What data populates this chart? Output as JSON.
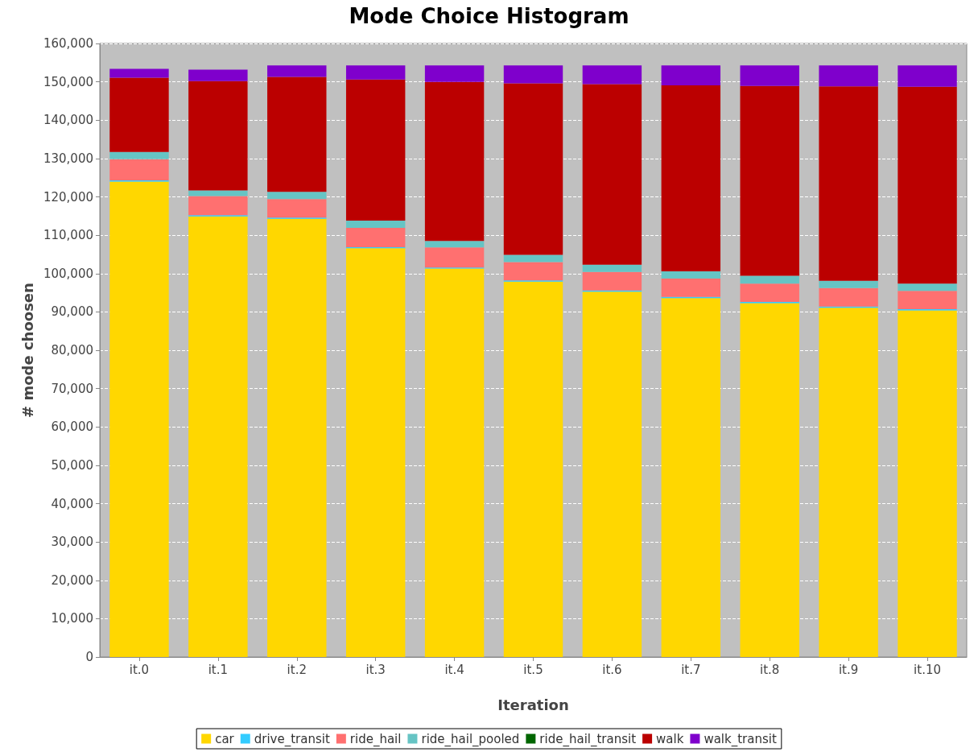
{
  "chart_data": {
    "type": "bar",
    "title": "Mode Choice Histogram",
    "xlabel": "Iteration",
    "ylabel": "# mode choosen",
    "categories": [
      "it.0",
      "it.1",
      "it.2",
      "it.3",
      "it.4",
      "it.5",
      "it.6",
      "it.7",
      "it.8",
      "it.9",
      "it.10"
    ],
    "stacked": true,
    "series": [
      {
        "name": "car",
        "color": "#ffd700",
        "values": [
          124000,
          114900,
          114300,
          106600,
          101300,
          97900,
          95300,
          93600,
          92300,
          91100,
          90400
        ]
      },
      {
        "name": "drive_transit",
        "color": "#33ccff",
        "values": [
          300,
          300,
          300,
          300,
          300,
          300,
          300,
          300,
          300,
          300,
          300
        ]
      },
      {
        "name": "ride_hail",
        "color": "#ff7070",
        "values": [
          5500,
          5000,
          4800,
          5000,
          5200,
          4800,
          4800,
          4800,
          4800,
          4800,
          4800
        ]
      },
      {
        "name": "ride_hail_pooled",
        "color": "#66c4c4",
        "values": [
          1900,
          1500,
          1900,
          1900,
          1700,
          1900,
          1900,
          1900,
          2000,
          1900,
          1900
        ]
      },
      {
        "name": "ride_hail_transit",
        "color": "#006600",
        "values": [
          0,
          0,
          0,
          0,
          0,
          0,
          0,
          0,
          0,
          0,
          0
        ]
      },
      {
        "name": "walk",
        "color": "#bb0000",
        "values": [
          19400,
          28500,
          30000,
          36800,
          41500,
          44700,
          47100,
          48500,
          49500,
          50700,
          51300
        ]
      },
      {
        "name": "walk_transit",
        "color": "#7f00cc",
        "values": [
          2300,
          3000,
          3000,
          3700,
          4300,
          4700,
          4900,
          5200,
          5400,
          5500,
          5600
        ]
      }
    ],
    "ylim": [
      0,
      160000
    ],
    "yticks": [
      0,
      {
        "value": 10000,
        "label": "10,000"
      },
      {
        "value": 20000,
        "label": "20,000"
      },
      {
        "value": 30000,
        "label": "30,000"
      },
      {
        "value": 40000,
        "label": "40,000"
      },
      {
        "value": 50000,
        "label": "50,000"
      },
      {
        "value": 60000,
        "label": "60,000"
      },
      {
        "value": 70000,
        "label": "70,000"
      },
      {
        "value": 80000,
        "label": "80,000"
      },
      {
        "value": 90000,
        "label": "90,000"
      },
      {
        "value": 100000,
        "label": "100,000"
      },
      {
        "value": 110000,
        "label": "110,000"
      },
      {
        "value": 120000,
        "label": "120,000"
      },
      {
        "value": 130000,
        "label": "130,000"
      },
      {
        "value": 140000,
        "label": "140,000"
      },
      {
        "value": 150000,
        "label": "150,000"
      },
      {
        "value": 160000,
        "label": "160,000"
      }
    ],
    "grid": "y",
    "legend": "bottom"
  }
}
